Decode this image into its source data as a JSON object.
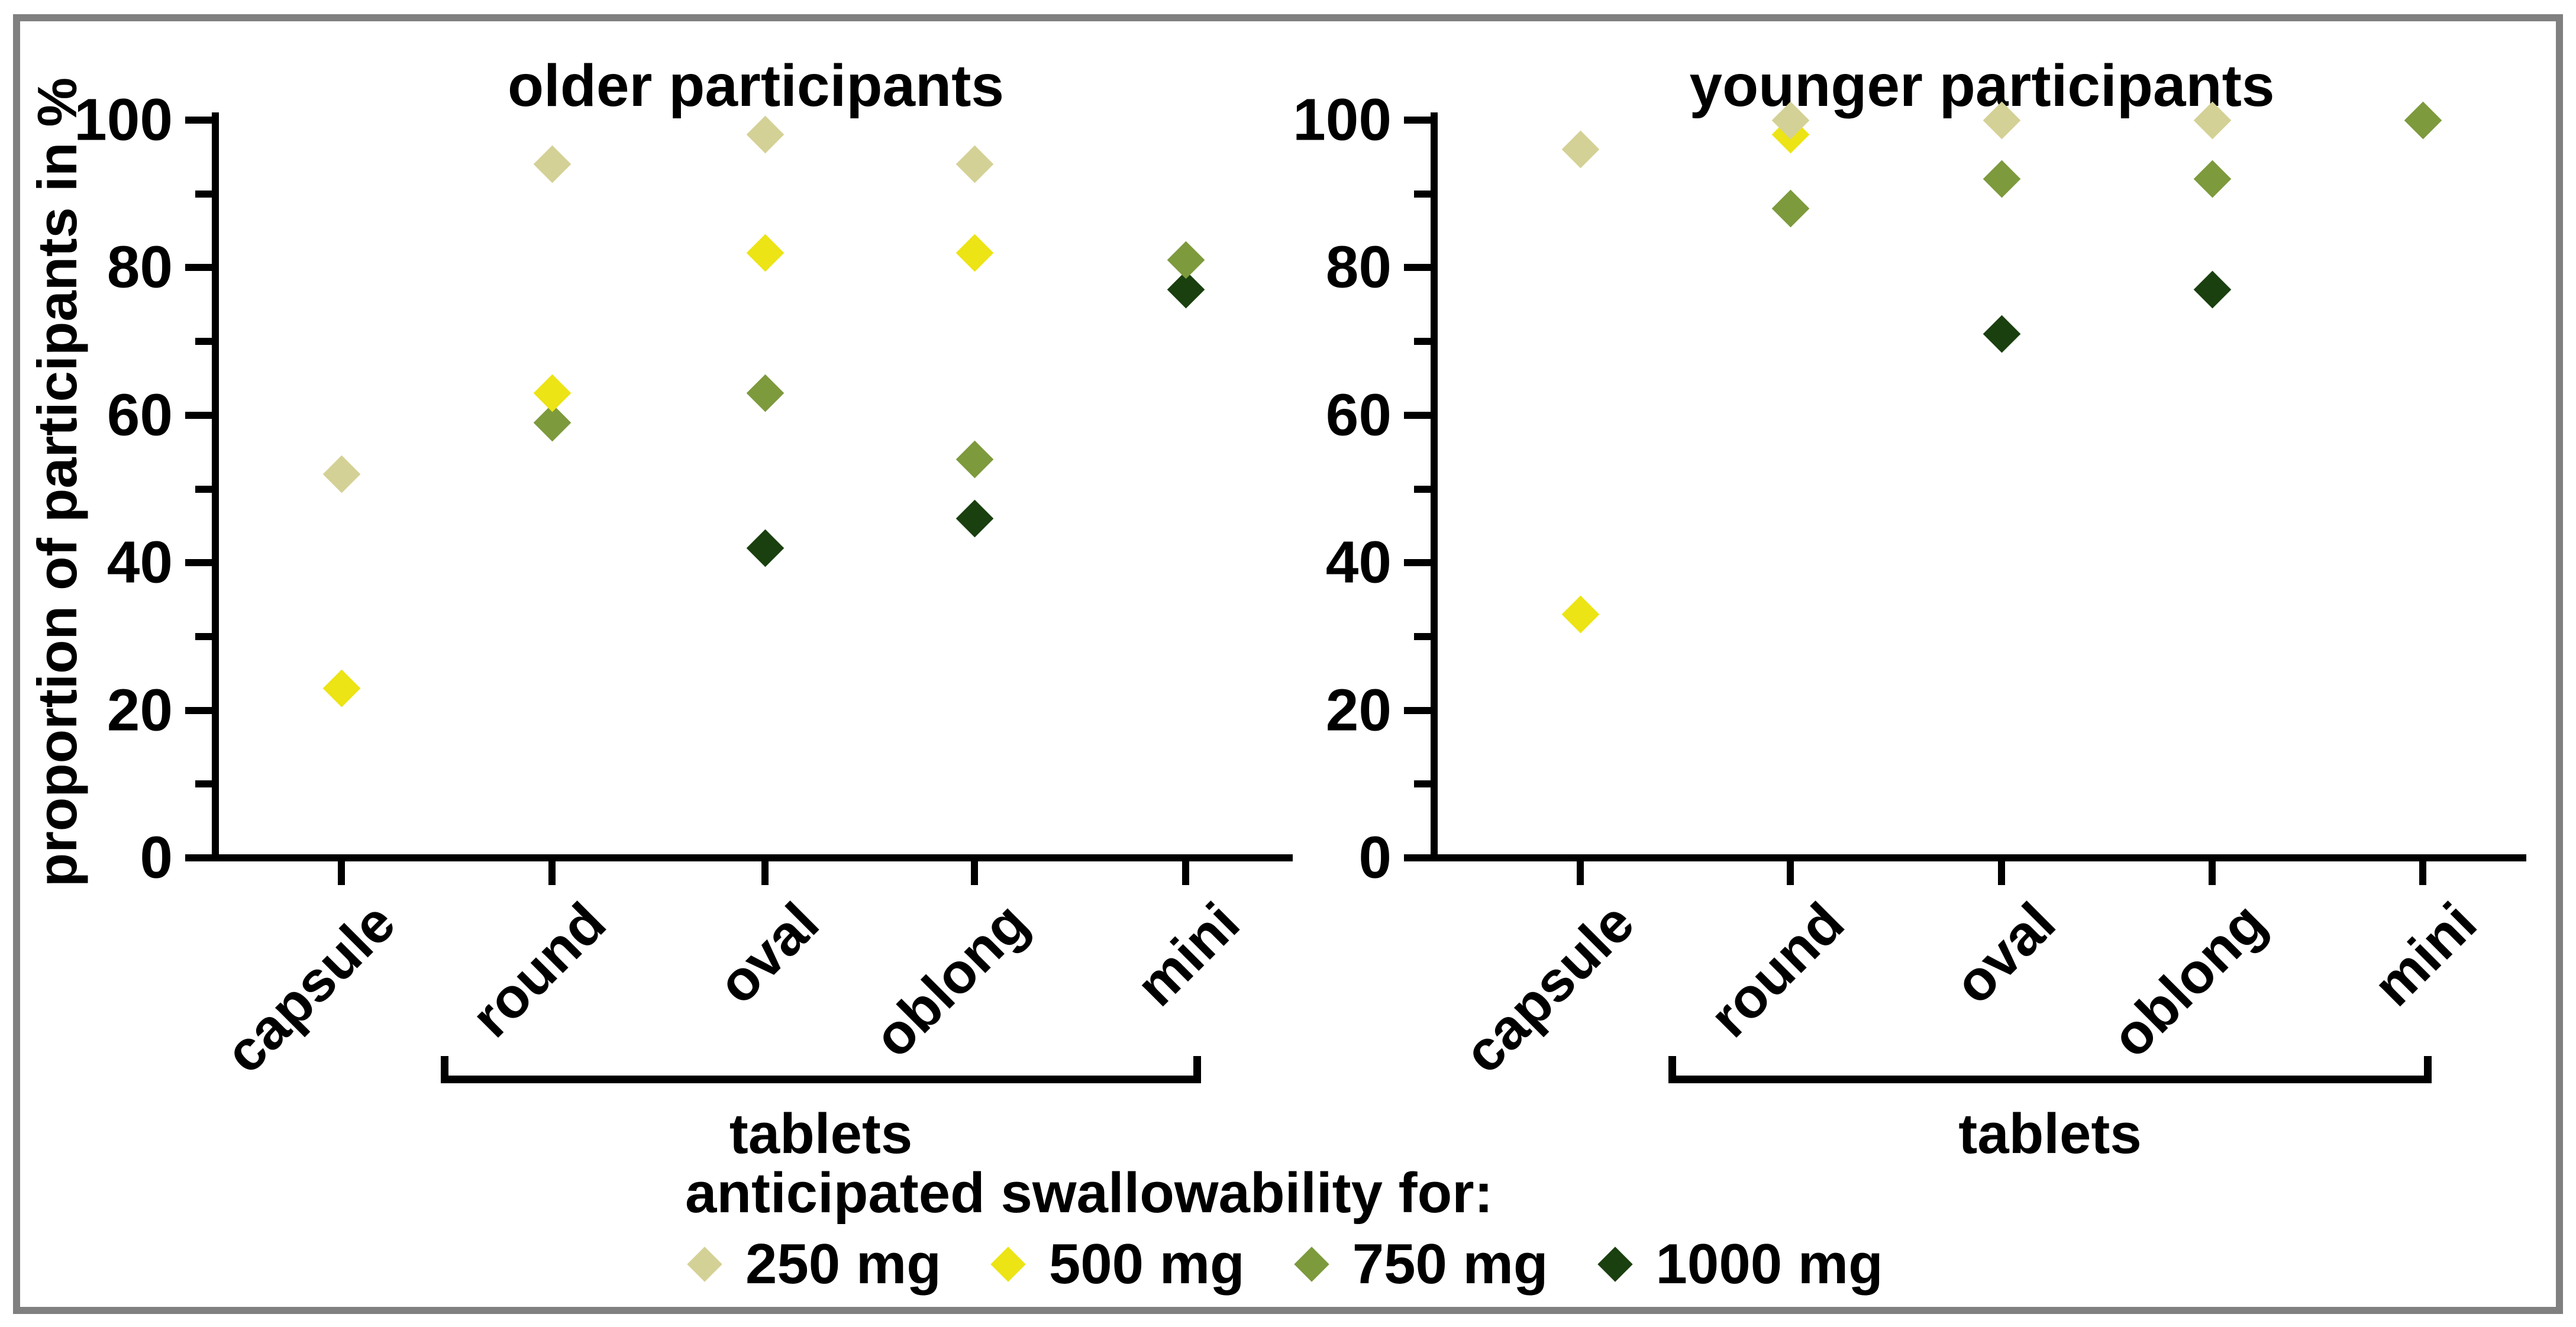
{
  "figure": {
    "y_axis_label": "proportion of participants in %",
    "bracket_label": "tablets",
    "legend": {
      "title": "anticipated swallowability for:",
      "items": [
        {
          "label": "250 mg",
          "color": "#d4d196"
        },
        {
          "label": "500 mg",
          "color": "#ece414"
        },
        {
          "label": "750 mg",
          "color": "#7d9a3d"
        },
        {
          "label": "1000 mg",
          "color": "#1a400f"
        }
      ]
    },
    "colors": {
      "axis": "#000000",
      "frame_border": "#808080",
      "background": "#ffffff"
    }
  },
  "chart_data": [
    {
      "type": "scatter",
      "title": "older participants",
      "ylabel": "proportion of participants in %",
      "ylim": [
        0,
        100
      ],
      "y_ticks": [
        0,
        20,
        40,
        60,
        80,
        100
      ],
      "grid": false,
      "legend_position": "bottom",
      "categories": [
        "capsule",
        "round",
        "oval",
        "oblong",
        "mini"
      ],
      "group_bracket": {
        "label": "tablets",
        "from": "round",
        "to": "mini"
      },
      "series": [
        {
          "name": "250 mg",
          "color": "#d4d196",
          "values": [
            52,
            94,
            98,
            94,
            null
          ]
        },
        {
          "name": "500 mg",
          "color": "#ece414",
          "values": [
            23,
            63,
            82,
            82,
            null
          ]
        },
        {
          "name": "750 mg",
          "color": "#7d9a3d",
          "values": [
            null,
            59,
            63,
            54,
            81
          ]
        },
        {
          "name": "1000 mg",
          "color": "#1a400f",
          "values": [
            null,
            null,
            42,
            46,
            77
          ]
        }
      ]
    },
    {
      "type": "scatter",
      "title": "younger participants",
      "ylabel": "proportion of participants in %",
      "ylim": [
        0,
        100
      ],
      "y_ticks": [
        0,
        20,
        40,
        60,
        80,
        100
      ],
      "grid": false,
      "legend_position": "bottom",
      "categories": [
        "capsule",
        "round",
        "oval",
        "oblong",
        "mini"
      ],
      "group_bracket": {
        "label": "tablets",
        "from": "round",
        "to": "mini"
      },
      "series": [
        {
          "name": "250 mg",
          "color": "#d4d196",
          "values": [
            96,
            100,
            100,
            100,
            null
          ]
        },
        {
          "name": "500 mg",
          "color": "#ece414",
          "values": [
            33,
            98,
            null,
            null,
            null
          ]
        },
        {
          "name": "750 mg",
          "color": "#7d9a3d",
          "values": [
            null,
            88,
            92,
            92,
            100
          ]
        },
        {
          "name": "1000 mg",
          "color": "#1a400f",
          "values": [
            null,
            null,
            71,
            77,
            null
          ]
        }
      ]
    }
  ]
}
